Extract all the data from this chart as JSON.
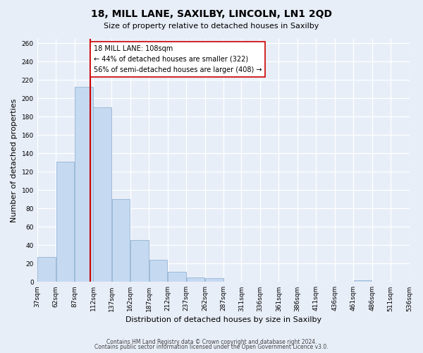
{
  "title": "18, MILL LANE, SAXILBY, LINCOLN, LN1 2QD",
  "subtitle": "Size of property relative to detached houses in Saxilby",
  "xlabel": "Distribution of detached houses by size in Saxilby",
  "ylabel": "Number of detached properties",
  "bar_edges": [
    37,
    62,
    87,
    112,
    137,
    162,
    187,
    212,
    237,
    262,
    287,
    311,
    336,
    361,
    386,
    411,
    436,
    461,
    486,
    511,
    536
  ],
  "bar_heights": [
    27,
    131,
    213,
    190,
    90,
    46,
    24,
    11,
    5,
    4,
    0,
    0,
    0,
    0,
    0,
    0,
    0,
    2,
    0,
    0
  ],
  "bar_color": "#c5d9f1",
  "bar_edge_color": "#9dbad8",
  "vline_x": 108,
  "vline_color": "#cc0000",
  "annotation_text": "18 MILL LANE: 108sqm\n← 44% of detached houses are smaller (322)\n56% of semi-detached houses are larger (408) →",
  "annotation_box_color": "#ffffff",
  "annotation_box_edge": "#cc0000",
  "ylim": [
    0,
    265
  ],
  "yticks": [
    0,
    20,
    40,
    60,
    80,
    100,
    120,
    140,
    160,
    180,
    200,
    220,
    240,
    260
  ],
  "tick_labels": [
    "37sqm",
    "62sqm",
    "87sqm",
    "112sqm",
    "137sqm",
    "162sqm",
    "187sqm",
    "212sqm",
    "237sqm",
    "262sqm",
    "287sqm",
    "311sqm",
    "336sqm",
    "361sqm",
    "386sqm",
    "411sqm",
    "436sqm",
    "461sqm",
    "486sqm",
    "511sqm",
    "536sqm"
  ],
  "footer_line1": "Contains HM Land Registry data © Crown copyright and database right 2024.",
  "footer_line2": "Contains public sector information licensed under the Open Government Licence v3.0.",
  "background_color": "#e8eef8",
  "plot_bg_color": "#e8eef8"
}
